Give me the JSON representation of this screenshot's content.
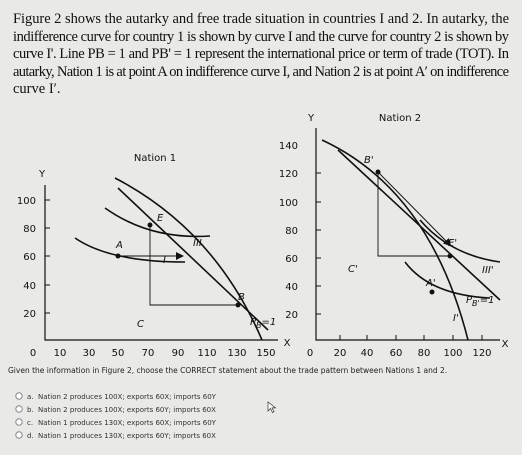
{
  "problem": {
    "lines": [
      "Figure 2 shows the autarky and free trade situation in countries I and 2. In autarky, the",
      "indifference curve for country 1 is shown by curve I and the curve for country 2 is shown by",
      "curve I'. Line PB = 1 and PB' = 1 represent the international price or term of trade (TOT). In",
      "autarky, Nation 1 is at point A on indifference curve I, and Nation 2 is at point A′ on indifference",
      "curve I′."
    ]
  },
  "figure_left": {
    "title": "Nation 1",
    "y_label": "Y",
    "x_label": "X",
    "y_ticks": [
      "100",
      "80",
      "60",
      "40",
      "20"
    ],
    "x_ticks": [
      "0",
      "10",
      "30",
      "50",
      "70",
      "90",
      "110",
      "130",
      "150"
    ],
    "points": {
      "E": "E",
      "A": "A",
      "B": "B",
      "C": "C"
    },
    "curves": {
      "III": "III",
      "I": "I"
    },
    "price_line": {
      "p": "P",
      "sub": "B",
      "rest": "=1"
    }
  },
  "figure_right": {
    "title": "Nation 2",
    "y_label": "Y",
    "x_label": "X",
    "y_ticks": [
      "140",
      "120",
      "100",
      "80",
      "60",
      "40",
      "20"
    ],
    "x_ticks": [
      "0",
      "20",
      "40",
      "60",
      "80",
      "100",
      "120"
    ],
    "points": {
      "B": "B'",
      "C": "C'",
      "A": "A'",
      "E": "E'"
    },
    "curves": {
      "III": "III'",
      "I": "I'"
    },
    "price_line": {
      "p": "P",
      "sub": "B'",
      "rest": "=1"
    }
  },
  "question": "Given the information in Figure 2, choose the CORRECT statement about the trade pattern between Nations 1 and 2.",
  "options": [
    {
      "letter": "a.",
      "text": "Nation 2 produces 100X; exports 60X; imports 60Y"
    },
    {
      "letter": "b.",
      "text": "Nation 2 produces 100X; exports 60Y; imports 60X"
    },
    {
      "letter": "c.",
      "text": "Nation 1 produces 130X; exports 60X; imports 60Y"
    },
    {
      "letter": "d.",
      "text": "Nation 1 produces 130X; exports 60Y; imports 60X"
    }
  ]
}
